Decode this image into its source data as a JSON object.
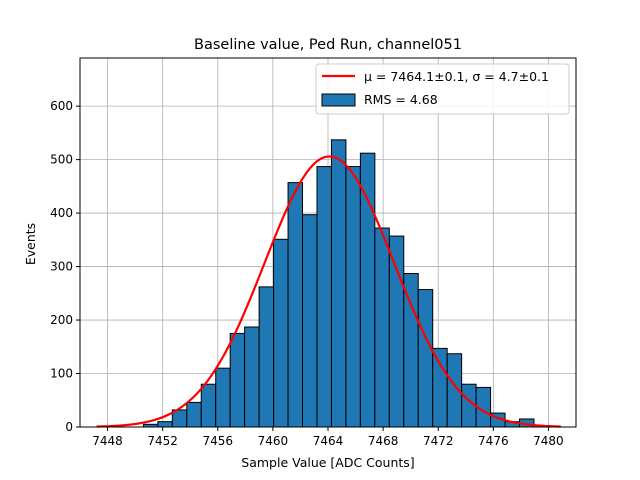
{
  "chart_data": {
    "type": "bar",
    "title": "Baseline value, Ped Run, channel051",
    "xlabel": "Sample Value [ADC Counts]",
    "ylabel": "Events",
    "xlim": [
      7446,
      7482
    ],
    "ylim": [
      0,
      690
    ],
    "xticks": [
      7448,
      7452,
      7456,
      7460,
      7464,
      7468,
      7472,
      7476,
      7480
    ],
    "yticks": [
      0,
      100,
      200,
      300,
      400,
      500,
      600
    ],
    "grid": true,
    "legend_placement": "top-right",
    "bins": {
      "start": 7450.6,
      "width": 1.05,
      "values": [
        5,
        10,
        32,
        46,
        80,
        110,
        175,
        187,
        262,
        351,
        457,
        397,
        487,
        537,
        487,
        512,
        372,
        357,
        287,
        257,
        147,
        137,
        80,
        74,
        26,
        10,
        15
      ]
    },
    "fit": {
      "type": "gaussian",
      "mu": 7464.1,
      "sigma": 4.7,
      "peak": 506,
      "x_range": [
        7447.2,
        7480.9
      ]
    },
    "legend": {
      "fit_label": "μ = 7464.1±0.1, σ = 4.7±0.1",
      "hist_label": "RMS = 4.68"
    },
    "colors": {
      "bar_fill": "#1f77b4",
      "bar_edge": "#000000",
      "fit_line": "#ff0000",
      "grid": "#b0b0b0"
    }
  }
}
